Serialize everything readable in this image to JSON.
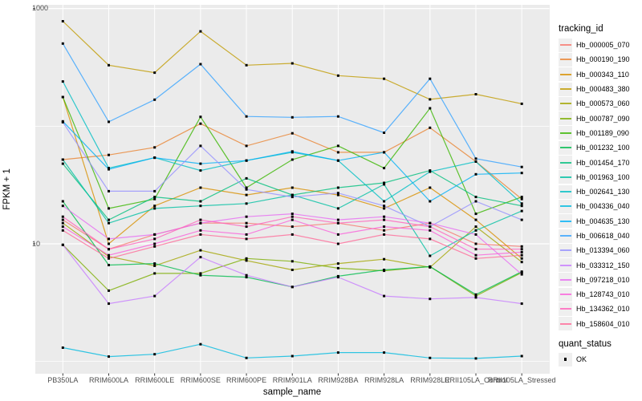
{
  "figure": {
    "x_axis_title": "sample_name",
    "y_axis_title": "FPKM + 1"
  },
  "colors": {
    "panel_background": "#EBEBEB",
    "gridline": "#FFFFFF",
    "tick_mark": "#333333",
    "tick_text": "#4D4D4D",
    "axis_title_text": "#000000",
    "legend_key_background": "#EFEFEF",
    "point": "#000000"
  },
  "legend": {
    "title": "tracking_id",
    "position": "right"
  },
  "quant_legend": {
    "title": "quant_status",
    "items": [
      {
        "label": "OK",
        "marker": "black-square"
      }
    ]
  },
  "chart_data": {
    "type": "line",
    "title": "",
    "xlabel": "sample_name",
    "ylabel": "FPKM + 1",
    "y_scale": "log10",
    "ylim": [
      0.8,
      1080
    ],
    "y_tick_values": [
      10,
      1000
    ],
    "y_tick_labels": [
      "10",
      "1000"
    ],
    "y_gridlines_major": [
      10,
      1000
    ],
    "y_gridlines_minor": [
      1,
      100
    ],
    "grid": "on",
    "legend_position": "right",
    "point_marker": "black-square",
    "categories": [
      "PB350LA",
      "RRIM600LA",
      "RRIM600LE",
      "RRIM600SE",
      "RRIM600PE",
      "RRIM901LA",
      "RRIM928BA",
      "RRIM928LA",
      "RRIM928LE",
      "RRII105LA_Control",
      "RRII105LA_Stressed"
    ],
    "series": [
      {
        "name": "Hb_000005_070",
        "color": "#F8766D",
        "values": [
          16,
          9,
          12,
          15,
          15,
          14,
          15,
          13,
          15,
          10,
          9.5
        ]
      },
      {
        "name": "Hb_000190_190",
        "color": "#EA8331",
        "values": [
          52,
          57,
          66,
          105,
          68,
          87,
          60,
          60,
          97,
          50,
          24
        ]
      },
      {
        "name": "Hb_000343_110",
        "color": "#D89000",
        "values": [
          177,
          10,
          21,
          30,
          26,
          30,
          26,
          20,
          30,
          16,
          7.5
        ]
      },
      {
        "name": "Hb_000483_380",
        "color": "#C09B00",
        "values": [
          780,
          330,
          285,
          640,
          330,
          342,
          269,
          253,
          169,
          187,
          155
        ]
      },
      {
        "name": "Hb_000573_060",
        "color": "#A3A500",
        "values": [
          15,
          7.8,
          6.5,
          8.8,
          7.2,
          6,
          6.8,
          7.4,
          6.3,
          14,
          7
        ]
      },
      {
        "name": "Hb_000787_090",
        "color": "#7CAE00",
        "values": [
          9.8,
          4,
          5.6,
          5.6,
          7.5,
          7.1,
          6.2,
          5.9,
          6.4,
          3.6,
          5.7
        ]
      },
      {
        "name": "Hb_001189_090",
        "color": "#39B600",
        "values": [
          177,
          20,
          24,
          120,
          30,
          52,
          68,
          44,
          142,
          18,
          25
        ]
      },
      {
        "name": "Hb_001232_100",
        "color": "#00BB4E",
        "values": [
          23,
          6.6,
          6.8,
          5.4,
          5.2,
          4.3,
          5.3,
          6,
          6.4,
          3.7,
          5.8
        ]
      },
      {
        "name": "Hb_001454_170",
        "color": "#00BF7D",
        "values": [
          48,
          16,
          25,
          23,
          36,
          26,
          30,
          33,
          42,
          25,
          21
        ]
      },
      {
        "name": "Hb_001963_100",
        "color": "#00C1A3",
        "values": [
          52,
          15,
          20,
          21,
          22,
          26,
          20,
          32,
          7.9,
          13,
          19
        ]
      },
      {
        "name": "Hb_002641_130",
        "color": "#00BFC4",
        "values": [
          240,
          44,
          54,
          42,
          51,
          60,
          51,
          23,
          41,
          50,
          22
        ]
      },
      {
        "name": "Hb_004336_040",
        "color": "#00BAE0",
        "values": [
          1.31,
          1.1,
          1.15,
          1.4,
          1.07,
          1.11,
          1.19,
          1.19,
          1.07,
          1.06,
          1.11
        ]
      },
      {
        "name": "Hb_004635_130",
        "color": "#00B0F6",
        "values": [
          110,
          43,
          54,
          48,
          51,
          61,
          51,
          60,
          23,
          39,
          40
        ]
      },
      {
        "name": "Hb_006618_040",
        "color": "#35A2FF",
        "values": [
          504,
          109,
          168,
          337,
          121,
          119,
          121,
          88,
          253,
          53,
          45
        ]
      },
      {
        "name": "Hb_013394_060",
        "color": "#9590FF",
        "values": [
          108,
          28,
          28,
          68,
          29,
          25,
          27,
          21,
          14,
          23,
          16
        ]
      },
      {
        "name": "Hb_033312_150",
        "color": "#C77CFF",
        "values": [
          9.8,
          3.1,
          3.6,
          7.7,
          5.4,
          4.3,
          5.2,
          3.6,
          3.4,
          3.5,
          3.1
        ]
      },
      {
        "name": "Hb_097218_010",
        "color": "#E76BF3",
        "values": [
          21,
          11,
          12,
          15,
          17,
          18,
          16,
          17,
          15,
          12,
          5.5
        ]
      },
      {
        "name": "Hb_128743_010",
        "color": "#FA62DB",
        "values": [
          14,
          8,
          10,
          13,
          12,
          16,
          12,
          14,
          13,
          8,
          8.5
        ]
      },
      {
        "name": "Hb_134362_010",
        "color": "#FF62BC",
        "values": [
          17,
          9,
          11,
          16,
          14,
          17,
          15,
          16,
          14,
          9,
          9
        ]
      },
      {
        "name": "Hb_158604_010",
        "color": "#FF6A98",
        "values": [
          13,
          7.5,
          9.5,
          12,
          11,
          12,
          10,
          12,
          11,
          7.5,
          8
        ]
      }
    ]
  }
}
